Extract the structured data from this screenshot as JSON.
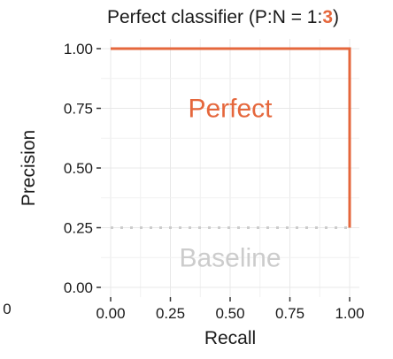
{
  "chart_data": {
    "type": "line",
    "title": "Perfect classifier (P:N = 1:3)",
    "title_parts": {
      "prefix": "Perfect classifier (P:N = 1:",
      "highlight": "3",
      "suffix": ")"
    },
    "xlabel": "Recall",
    "ylabel": "Precision",
    "xlim": [
      0,
      1
    ],
    "ylim": [
      0,
      1
    ],
    "x_ticks": [
      0,
      0.25,
      0.5,
      0.75,
      1
    ],
    "x_tick_labels": [
      "0.00",
      "0.25",
      "0.50",
      "0.75",
      "1.00"
    ],
    "y_ticks": [
      0,
      0.25,
      0.5,
      0.75,
      1
    ],
    "y_tick_labels": [
      "0.00",
      "0.25",
      "0.50",
      "0.75",
      "1.00"
    ],
    "left_cut_label": "0",
    "grid": true,
    "series": [
      {
        "name": "Perfect",
        "color": "#e5673c",
        "style": "solid",
        "x": [
          0,
          1,
          1
        ],
        "y": [
          1,
          1,
          0.25
        ]
      },
      {
        "name": "Baseline",
        "color": "#cccccc",
        "style": "dotted",
        "x": [
          0,
          1
        ],
        "y": [
          0.25,
          0.25
        ]
      }
    ],
    "annotations": [
      {
        "text": "Perfect",
        "x": 0.5,
        "y": 0.75,
        "color": "#e5673c"
      },
      {
        "text": "Baseline",
        "x": 0.5,
        "y": 0.125,
        "color": "#cccccc"
      }
    ]
  }
}
